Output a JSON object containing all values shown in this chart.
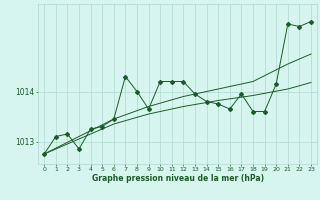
{
  "xlabel": "Graphe pression niveau de la mer (hPa)",
  "bg_color": "#d6f5ef",
  "grid_color": "#aed8d0",
  "line_color": "#1a5c28",
  "ylim": [
    1012.55,
    1015.75
  ],
  "yticks": [
    1013,
    1014
  ],
  "xlim": [
    -0.5,
    23.5
  ],
  "xticks": [
    0,
    1,
    2,
    3,
    4,
    5,
    6,
    7,
    8,
    9,
    10,
    11,
    12,
    13,
    14,
    15,
    16,
    17,
    18,
    19,
    20,
    21,
    22,
    23
  ],
  "series1_x": [
    0,
    1,
    2,
    3,
    4,
    5,
    6,
    7,
    8,
    9,
    10,
    11,
    12,
    13,
    14,
    15,
    16,
    17,
    18,
    19,
    20,
    21,
    22,
    23
  ],
  "series1_y": [
    1012.75,
    1013.1,
    1013.15,
    1012.85,
    1013.25,
    1013.3,
    1013.45,
    1014.3,
    1014.0,
    1013.65,
    1014.2,
    1014.2,
    1014.2,
    1013.95,
    1013.8,
    1013.75,
    1013.65,
    1013.95,
    1013.6,
    1013.6,
    1014.15,
    1015.35,
    1015.3,
    1015.4
  ],
  "series2_x": [
    0,
    3,
    6,
    9,
    12,
    15,
    18,
    21,
    23
  ],
  "series2_y": [
    1012.75,
    1013.1,
    1013.45,
    1013.7,
    1013.9,
    1014.05,
    1014.2,
    1014.55,
    1014.75
  ],
  "series3_x": [
    0,
    3,
    6,
    9,
    12,
    15,
    18,
    21,
    23
  ],
  "series3_y": [
    1012.75,
    1013.05,
    1013.35,
    1013.55,
    1013.7,
    1013.82,
    1013.92,
    1014.05,
    1014.18
  ]
}
